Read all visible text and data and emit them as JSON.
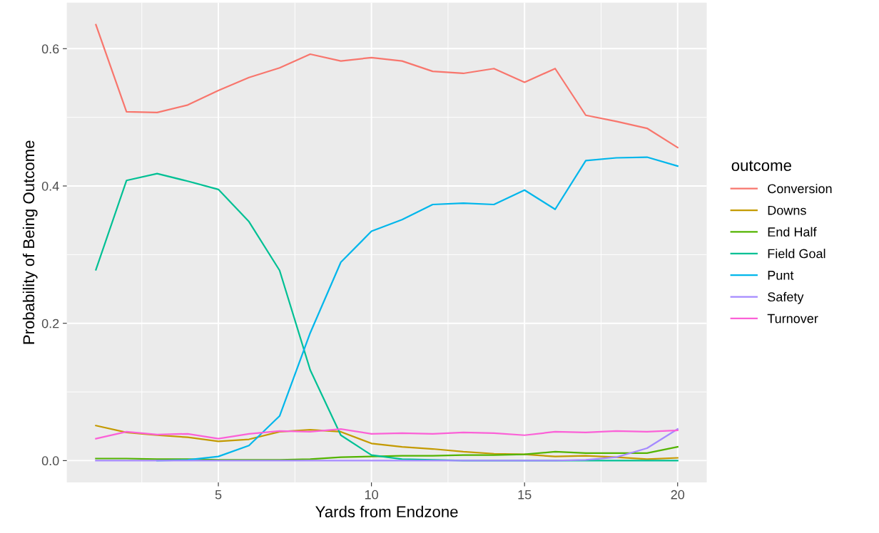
{
  "chart_data": {
    "type": "line",
    "xlabel": "Yards from Endzone",
    "ylabel": "Probability of Being Outcome",
    "legend_title": "outcome",
    "x": [
      1,
      2,
      3,
      4,
      5,
      6,
      7,
      8,
      9,
      10,
      11,
      12,
      13,
      14,
      15,
      16,
      17,
      18,
      19,
      20
    ],
    "xlim": [
      0.05,
      20.95
    ],
    "xticks": [
      5,
      10,
      15,
      20
    ],
    "ylim": [
      -0.0317,
      0.667
    ],
    "yticks": [
      {
        "value": 0,
        "label": "0.0"
      },
      0.2,
      0.4,
      0.6
    ],
    "grid": true,
    "legend": "right",
    "marker": "none",
    "line_style": "solid",
    "series": [
      {
        "name": "Conversion",
        "color": "#f8766d",
        "values": [
          0.635,
          0.508,
          0.507,
          0.518,
          0.539,
          0.558,
          0.572,
          0.592,
          0.582,
          0.587,
          0.582,
          0.567,
          0.564,
          0.571,
          0.551,
          0.571,
          0.503,
          0.494,
          0.484,
          0.456
        ]
      },
      {
        "name": "Downs",
        "color": "#c49a00",
        "values": [
          0.051,
          0.041,
          0.037,
          0.034,
          0.028,
          0.031,
          0.042,
          0.045,
          0.042,
          0.025,
          0.02,
          0.017,
          0.013,
          0.01,
          0.009,
          0.006,
          0.007,
          0.005,
          0.002,
          0.004
        ]
      },
      {
        "name": "End Half",
        "color": "#53b400",
        "values": [
          0.003,
          0.003,
          0.002,
          0.002,
          0.001,
          0.001,
          0.001,
          0.002,
          0.005,
          0.006,
          0.007,
          0.007,
          0.008,
          0.008,
          0.009,
          0.013,
          0.011,
          0.011,
          0.011,
          0.02
        ]
      },
      {
        "name": "Field Goal",
        "color": "#00c094",
        "values": [
          0.278,
          0.408,
          0.418,
          0.407,
          0.395,
          0.348,
          0.277,
          0.132,
          0.037,
          0.008,
          0.002,
          0.001,
          0,
          0,
          0,
          0,
          0,
          0,
          0,
          0
        ]
      },
      {
        "name": "Punt",
        "color": "#00b6eb",
        "values": [
          null,
          null,
          0,
          0.001,
          0.006,
          0.022,
          0.065,
          0.186,
          0.289,
          0.334,
          0.351,
          0.373,
          0.375,
          0.373,
          0.394,
          0.366,
          0.437,
          0.441,
          0.442,
          0.429
        ]
      },
      {
        "name": "Safety",
        "color": "#a58aff",
        "values": [
          0,
          0,
          0,
          0,
          0,
          0,
          0,
          0,
          0,
          0,
          0,
          0,
          0,
          0,
          0,
          0,
          0.001,
          0.005,
          0.018,
          0.046
        ]
      },
      {
        "name": "Turnover",
        "color": "#fb61d7",
        "values": [
          0.032,
          0.042,
          0.038,
          0.039,
          0.032,
          0.039,
          0.043,
          0.042,
          0.046,
          0.039,
          0.04,
          0.039,
          0.041,
          0.04,
          0.037,
          0.042,
          0.041,
          0.043,
          0.042,
          0.044
        ]
      }
    ]
  }
}
